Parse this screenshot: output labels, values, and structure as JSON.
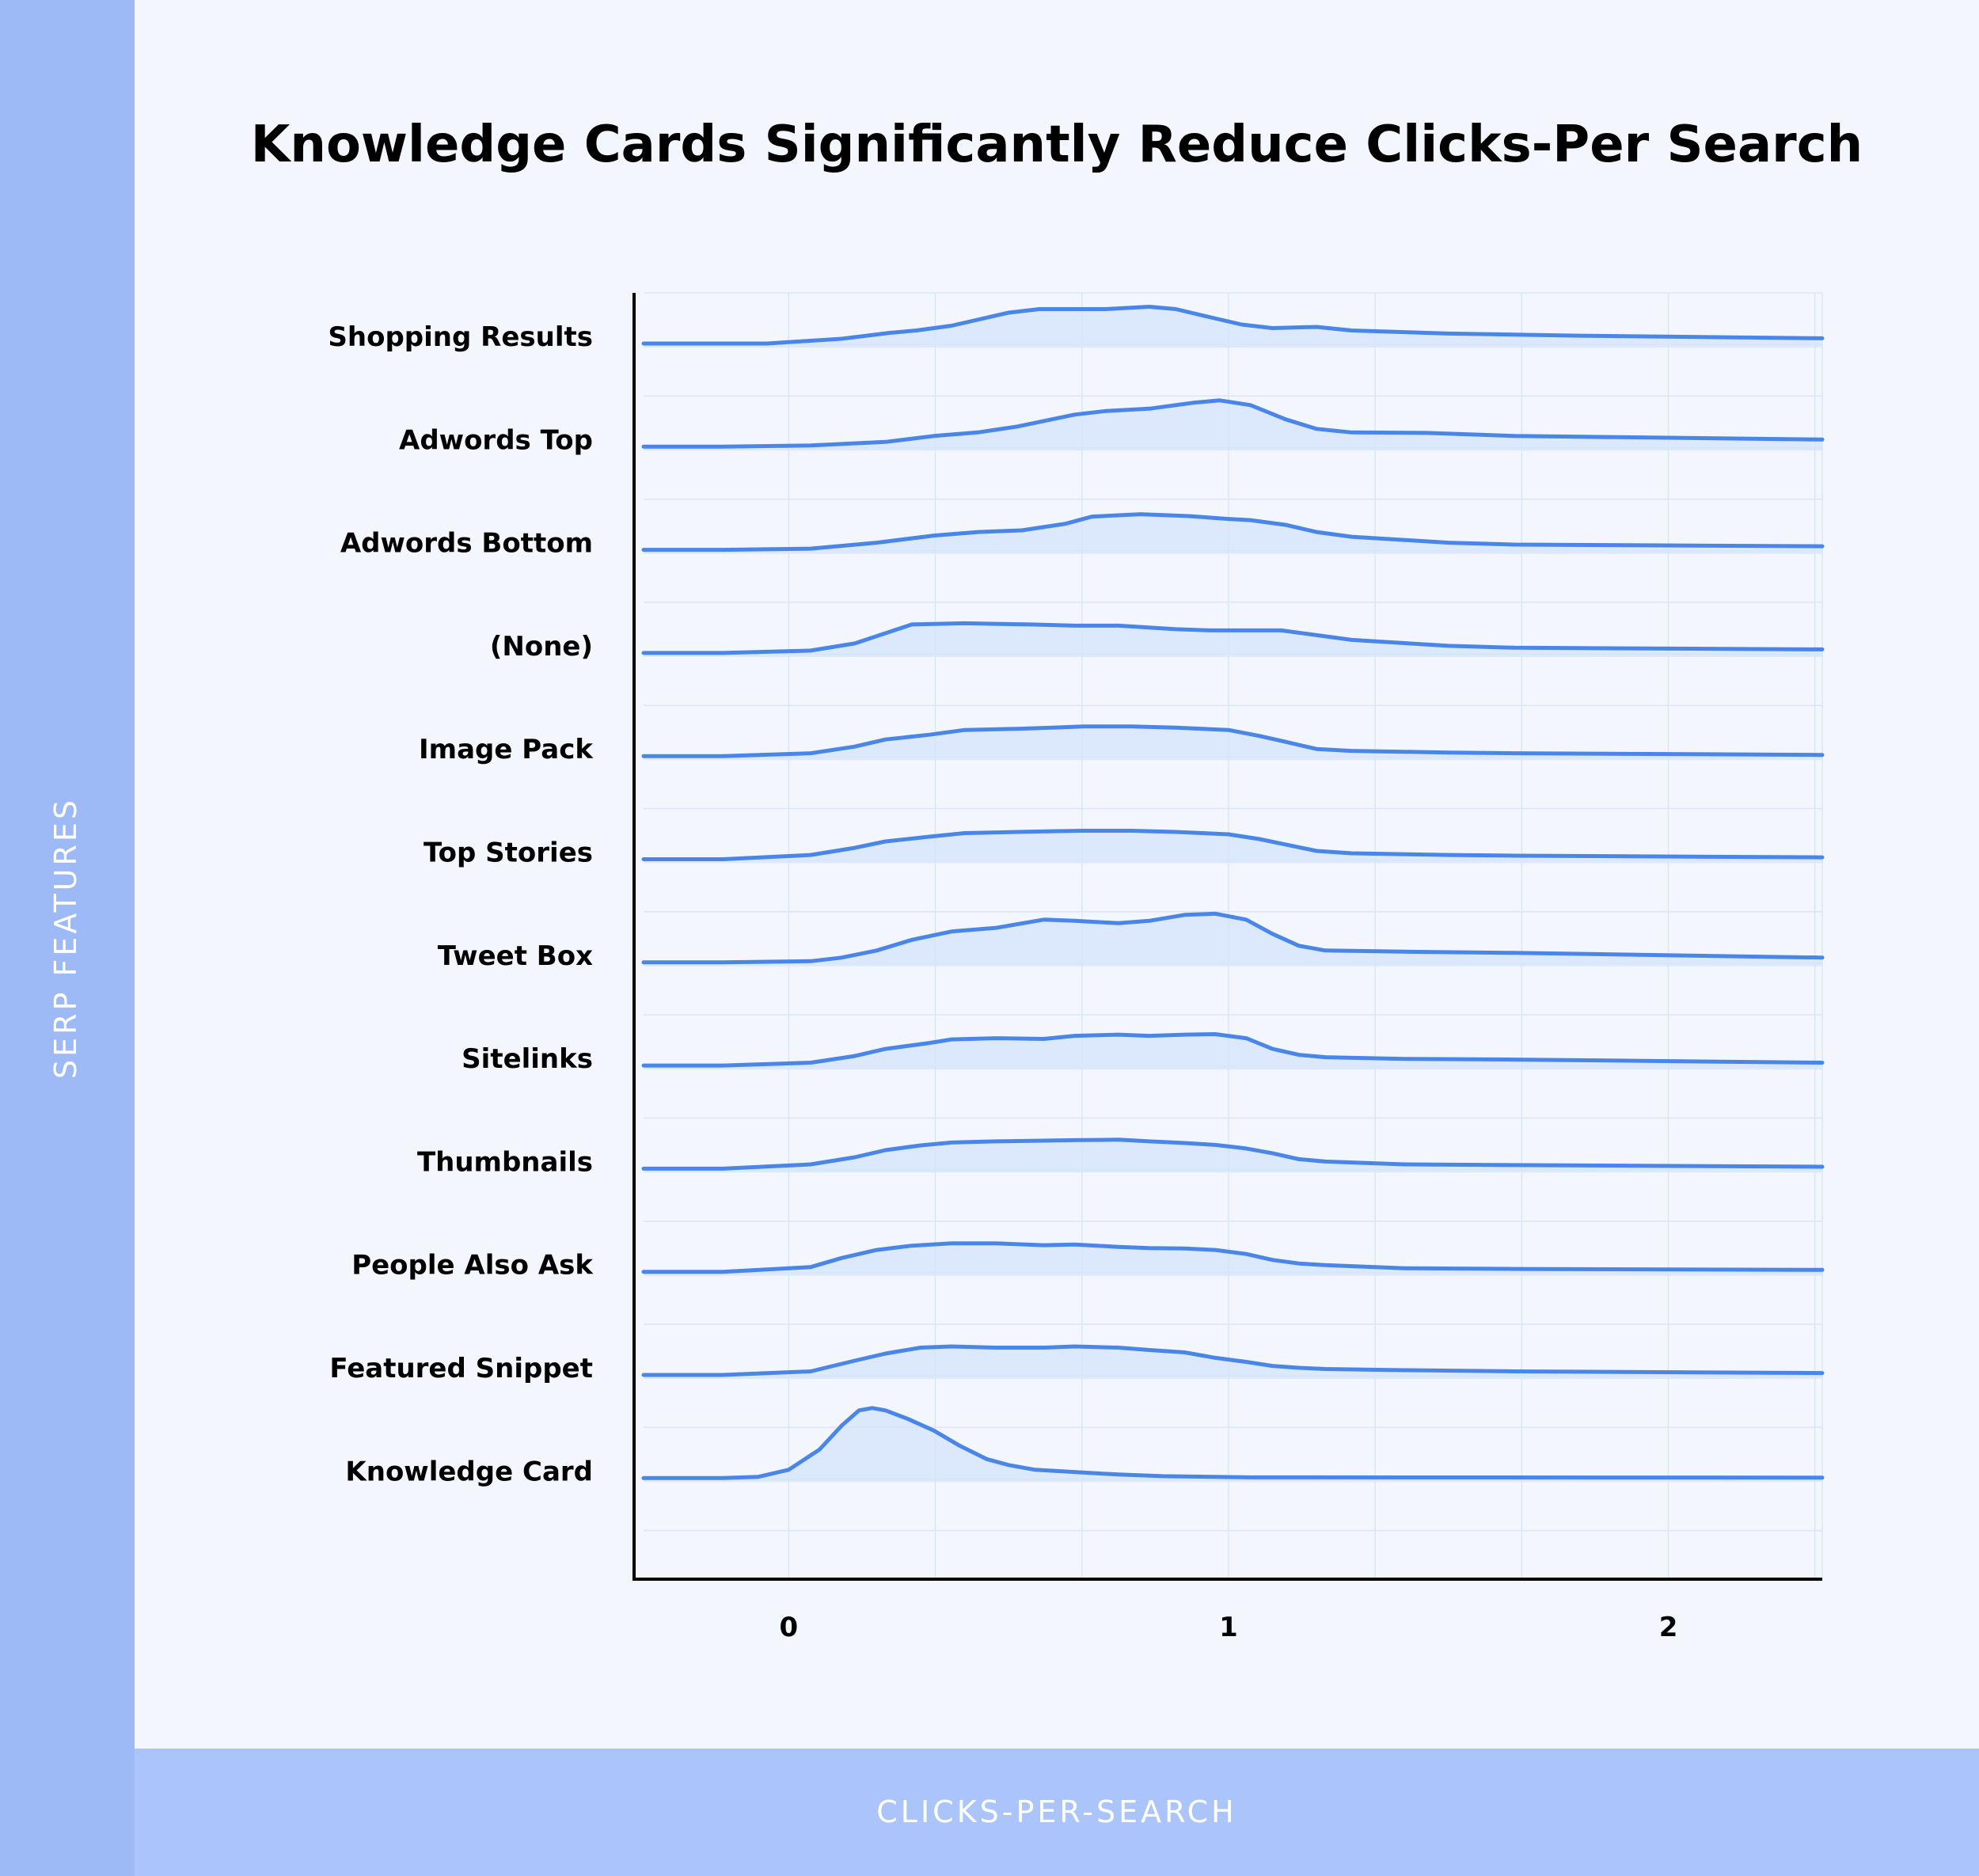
{
  "chart_data": {
    "type": "ridgeline",
    "title": "Knowledge Cards Significantly Reduce Clicks-Per Search",
    "xlabel": "CLICKS-PER-SEARCH",
    "ylabel": "SERP FEATURES",
    "xlim": [
      -0.33,
      2.35
    ],
    "xticks": [
      0,
      1,
      2
    ],
    "grid": true,
    "colors": {
      "line": "#4a86e8",
      "fill": "#d6e5fb",
      "grid": "#dbe6f5",
      "axis": "#000000"
    },
    "series": [
      {
        "name": "Shopping Results",
        "points": [
          [
            -0.33,
            0
          ],
          [
            -0.05,
            0
          ],
          [
            0.12,
            0.2
          ],
          [
            0.23,
            0.45
          ],
          [
            0.29,
            0.55
          ],
          [
            0.37,
            0.75
          ],
          [
            0.5,
            1.3
          ],
          [
            0.57,
            1.45
          ],
          [
            0.72,
            1.45
          ],
          [
            0.82,
            1.55
          ],
          [
            0.88,
            1.45
          ],
          [
            0.96,
            1.1
          ],
          [
            1.03,
            0.8
          ],
          [
            1.1,
            0.65
          ],
          [
            1.2,
            0.7
          ],
          [
            1.28,
            0.55
          ],
          [
            1.5,
            0.42
          ],
          [
            1.8,
            0.33
          ],
          [
            2.35,
            0.22
          ]
        ]
      },
      {
        "name": "Adwords Top",
        "points": [
          [
            -0.33,
            0
          ],
          [
            -0.15,
            0
          ],
          [
            0.05,
            0.05
          ],
          [
            0.22,
            0.2
          ],
          [
            0.33,
            0.45
          ],
          [
            0.43,
            0.6
          ],
          [
            0.52,
            0.85
          ],
          [
            0.65,
            1.35
          ],
          [
            0.72,
            1.5
          ],
          [
            0.82,
            1.6
          ],
          [
            0.92,
            1.85
          ],
          [
            0.98,
            1.95
          ],
          [
            1.05,
            1.75
          ],
          [
            1.13,
            1.15
          ],
          [
            1.2,
            0.75
          ],
          [
            1.28,
            0.6
          ],
          [
            1.45,
            0.58
          ],
          [
            1.65,
            0.45
          ],
          [
            2.35,
            0.3
          ]
        ]
      },
      {
        "name": "Adwords Bottom",
        "points": [
          [
            -0.33,
            0
          ],
          [
            -0.15,
            0
          ],
          [
            0.05,
            0.05
          ],
          [
            0.2,
            0.3
          ],
          [
            0.33,
            0.6
          ],
          [
            0.43,
            0.75
          ],
          [
            0.53,
            0.82
          ],
          [
            0.63,
            1.1
          ],
          [
            0.69,
            1.4
          ],
          [
            0.8,
            1.5
          ],
          [
            0.91,
            1.42
          ],
          [
            1.0,
            1.3
          ],
          [
            1.05,
            1.25
          ],
          [
            1.13,
            1.05
          ],
          [
            1.2,
            0.75
          ],
          [
            1.28,
            0.55
          ],
          [
            1.5,
            0.3
          ],
          [
            1.65,
            0.22
          ],
          [
            2.35,
            0.15
          ]
        ]
      },
      {
        "name": "(None)",
        "points": [
          [
            -0.33,
            0
          ],
          [
            -0.15,
            0
          ],
          [
            0.05,
            0.1
          ],
          [
            0.15,
            0.4
          ],
          [
            0.28,
            1.2
          ],
          [
            0.4,
            1.25
          ],
          [
            0.55,
            1.2
          ],
          [
            0.65,
            1.15
          ],
          [
            0.75,
            1.15
          ],
          [
            0.88,
            1.0
          ],
          [
            0.96,
            0.95
          ],
          [
            1.05,
            0.95
          ],
          [
            1.12,
            0.95
          ],
          [
            1.2,
            0.75
          ],
          [
            1.28,
            0.55
          ],
          [
            1.5,
            0.3
          ],
          [
            1.65,
            0.22
          ],
          [
            2.35,
            0.15
          ]
        ]
      },
      {
        "name": "Image Pack",
        "points": [
          [
            -0.33,
            0
          ],
          [
            -0.15,
            0
          ],
          [
            0.05,
            0.12
          ],
          [
            0.15,
            0.4
          ],
          [
            0.22,
            0.7
          ],
          [
            0.32,
            0.9
          ],
          [
            0.4,
            1.1
          ],
          [
            0.52,
            1.15
          ],
          [
            0.6,
            1.2
          ],
          [
            0.67,
            1.25
          ],
          [
            0.78,
            1.25
          ],
          [
            0.88,
            1.2
          ],
          [
            1.0,
            1.1
          ],
          [
            1.07,
            0.85
          ],
          [
            1.13,
            0.6
          ],
          [
            1.2,
            0.3
          ],
          [
            1.28,
            0.22
          ],
          [
            1.5,
            0.15
          ],
          [
            1.65,
            0.12
          ],
          [
            2.35,
            0.05
          ]
        ]
      },
      {
        "name": "Top Stories",
        "points": [
          [
            -0.33,
            0
          ],
          [
            -0.15,
            0
          ],
          [
            0.05,
            0.18
          ],
          [
            0.15,
            0.48
          ],
          [
            0.22,
            0.75
          ],
          [
            0.32,
            0.95
          ],
          [
            0.4,
            1.1
          ],
          [
            0.52,
            1.15
          ],
          [
            0.6,
            1.18
          ],
          [
            0.67,
            1.2
          ],
          [
            0.78,
            1.2
          ],
          [
            0.88,
            1.15
          ],
          [
            1.0,
            1.05
          ],
          [
            1.07,
            0.85
          ],
          [
            1.13,
            0.62
          ],
          [
            1.2,
            0.35
          ],
          [
            1.28,
            0.25
          ],
          [
            1.5,
            0.18
          ],
          [
            1.65,
            0.15
          ],
          [
            2.35,
            0.08
          ]
        ]
      },
      {
        "name": "Tweet Box",
        "points": [
          [
            -0.33,
            0
          ],
          [
            -0.15,
            0
          ],
          [
            0.05,
            0.05
          ],
          [
            0.12,
            0.2
          ],
          [
            0.2,
            0.5
          ],
          [
            0.28,
            0.95
          ],
          [
            0.37,
            1.3
          ],
          [
            0.47,
            1.45
          ],
          [
            0.58,
            1.8
          ],
          [
            0.65,
            1.75
          ],
          [
            0.75,
            1.65
          ],
          [
            0.82,
            1.75
          ],
          [
            0.9,
            2.0
          ],
          [
            0.97,
            2.05
          ],
          [
            1.04,
            1.8
          ],
          [
            1.1,
            1.2
          ],
          [
            1.16,
            0.7
          ],
          [
            1.22,
            0.5
          ],
          [
            1.4,
            0.45
          ],
          [
            1.65,
            0.4
          ],
          [
            2.35,
            0.2
          ]
        ]
      },
      {
        "name": "Sitelinks",
        "points": [
          [
            -0.33,
            0
          ],
          [
            -0.15,
            0
          ],
          [
            0.05,
            0.12
          ],
          [
            0.15,
            0.4
          ],
          [
            0.22,
            0.7
          ],
          [
            0.32,
            0.95
          ],
          [
            0.37,
            1.1
          ],
          [
            0.47,
            1.15
          ],
          [
            0.58,
            1.12
          ],
          [
            0.65,
            1.25
          ],
          [
            0.75,
            1.3
          ],
          [
            0.82,
            1.25
          ],
          [
            0.9,
            1.3
          ],
          [
            0.97,
            1.32
          ],
          [
            1.04,
            1.15
          ],
          [
            1.1,
            0.7
          ],
          [
            1.16,
            0.45
          ],
          [
            1.22,
            0.35
          ],
          [
            1.4,
            0.28
          ],
          [
            1.65,
            0.25
          ],
          [
            2.35,
            0.12
          ]
        ]
      },
      {
        "name": "Thumbnails",
        "points": [
          [
            -0.33,
            0
          ],
          [
            -0.15,
            0
          ],
          [
            0.05,
            0.18
          ],
          [
            0.15,
            0.48
          ],
          [
            0.22,
            0.78
          ],
          [
            0.3,
            0.98
          ],
          [
            0.37,
            1.1
          ],
          [
            0.47,
            1.15
          ],
          [
            0.58,
            1.18
          ],
          [
            0.65,
            1.2
          ],
          [
            0.75,
            1.22
          ],
          [
            0.82,
            1.15
          ],
          [
            0.9,
            1.08
          ],
          [
            0.97,
            1.0
          ],
          [
            1.04,
            0.85
          ],
          [
            1.1,
            0.65
          ],
          [
            1.16,
            0.4
          ],
          [
            1.22,
            0.3
          ],
          [
            1.4,
            0.18
          ],
          [
            1.65,
            0.15
          ],
          [
            2.35,
            0.08
          ]
        ]
      },
      {
        "name": "People Also Ask",
        "points": [
          [
            -0.33,
            0
          ],
          [
            -0.15,
            0
          ],
          [
            0.05,
            0.2
          ],
          [
            0.12,
            0.58
          ],
          [
            0.2,
            0.92
          ],
          [
            0.28,
            1.1
          ],
          [
            0.37,
            1.2
          ],
          [
            0.47,
            1.2
          ],
          [
            0.58,
            1.12
          ],
          [
            0.65,
            1.15
          ],
          [
            0.75,
            1.05
          ],
          [
            0.82,
            1.0
          ],
          [
            0.9,
            0.98
          ],
          [
            0.97,
            0.92
          ],
          [
            1.04,
            0.75
          ],
          [
            1.1,
            0.5
          ],
          [
            1.16,
            0.35
          ],
          [
            1.22,
            0.28
          ],
          [
            1.4,
            0.15
          ],
          [
            1.65,
            0.12
          ],
          [
            2.35,
            0.08
          ]
        ]
      },
      {
        "name": "Featured Snippet",
        "points": [
          [
            -0.33,
            0
          ],
          [
            -0.15,
            0
          ],
          [
            0.05,
            0.15
          ],
          [
            0.15,
            0.6
          ],
          [
            0.22,
            0.9
          ],
          [
            0.3,
            1.15
          ],
          [
            0.37,
            1.2
          ],
          [
            0.47,
            1.15
          ],
          [
            0.58,
            1.15
          ],
          [
            0.65,
            1.2
          ],
          [
            0.75,
            1.15
          ],
          [
            0.82,
            1.05
          ],
          [
            0.9,
            0.95
          ],
          [
            0.97,
            0.72
          ],
          [
            1.04,
            0.55
          ],
          [
            1.1,
            0.38
          ],
          [
            1.16,
            0.3
          ],
          [
            1.22,
            0.25
          ],
          [
            1.4,
            0.2
          ],
          [
            1.65,
            0.15
          ],
          [
            2.35,
            0.08
          ]
        ]
      },
      {
        "name": "Knowledge Card",
        "points": [
          [
            -0.33,
            0
          ],
          [
            -0.15,
            0
          ],
          [
            -0.07,
            0.05
          ],
          [
            0.0,
            0.35
          ],
          [
            0.07,
            1.2
          ],
          [
            0.12,
            2.2
          ],
          [
            0.16,
            2.85
          ],
          [
            0.19,
            2.95
          ],
          [
            0.22,
            2.85
          ],
          [
            0.27,
            2.5
          ],
          [
            0.33,
            2.0
          ],
          [
            0.39,
            1.35
          ],
          [
            0.45,
            0.8
          ],
          [
            0.5,
            0.55
          ],
          [
            0.56,
            0.35
          ],
          [
            0.75,
            0.15
          ],
          [
            0.85,
            0.08
          ],
          [
            1.05,
            0.03
          ],
          [
            2.35,
            0.02
          ]
        ]
      }
    ]
  }
}
